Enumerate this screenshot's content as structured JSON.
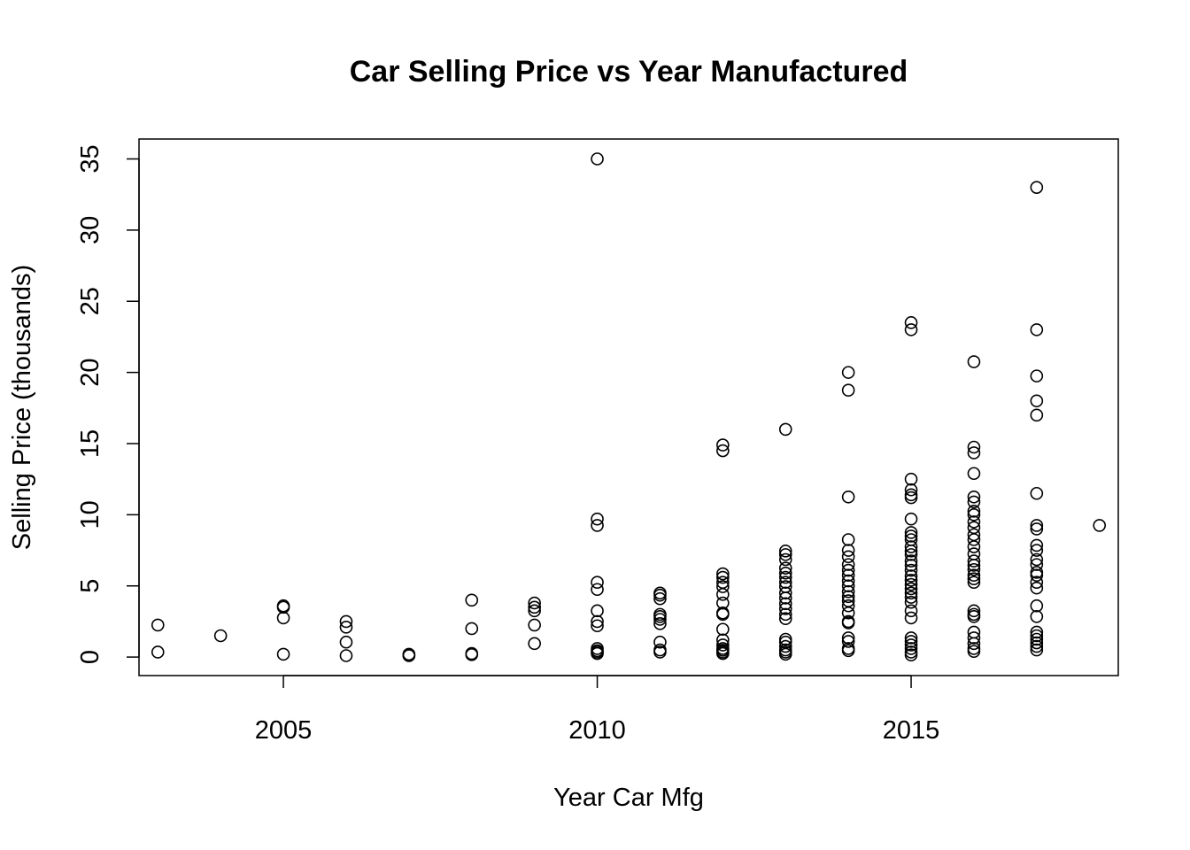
{
  "chart_data": {
    "type": "scatter",
    "title": "Car Selling Price vs Year Manufactured",
    "xlabel": "Year Car Mfg",
    "ylabel": "Selling Price (thousands)",
    "xlim": [
      2002.7,
      2018.3
    ],
    "ylim": [
      -1.3,
      36.4
    ],
    "xticks": [
      2005,
      2010,
      2015
    ],
    "yticks": [
      0,
      5,
      10,
      15,
      20,
      25,
      30,
      35
    ],
    "xtick_labels": [
      "2005",
      "2010",
      "2015"
    ],
    "ytick_labels": [
      "0",
      "5",
      "10",
      "15",
      "20",
      "25",
      "30",
      "35"
    ],
    "grid": false,
    "marker": "open-circle",
    "points": [
      [
        2003,
        2.25
      ],
      [
        2003,
        0.35
      ],
      [
        2004,
        1.5
      ],
      [
        2005,
        3.6
      ],
      [
        2005,
        3.5
      ],
      [
        2005,
        2.75
      ],
      [
        2005,
        0.2
      ],
      [
        2006,
        2.5
      ],
      [
        2006,
        2.1
      ],
      [
        2006,
        1.05
      ],
      [
        2006,
        0.1
      ],
      [
        2007,
        0.2
      ],
      [
        2007,
        0.12
      ],
      [
        2007,
        0.1
      ],
      [
        2008,
        4.0
      ],
      [
        2008,
        2.0
      ],
      [
        2008,
        0.25
      ],
      [
        2008,
        0.17
      ],
      [
        2009,
        3.8
      ],
      [
        2009,
        3.5
      ],
      [
        2009,
        3.25
      ],
      [
        2009,
        2.25
      ],
      [
        2009,
        0.95
      ],
      [
        2010,
        35.0
      ],
      [
        2010,
        9.7
      ],
      [
        2010,
        9.25
      ],
      [
        2010,
        5.25
      ],
      [
        2010,
        4.75
      ],
      [
        2010,
        3.25
      ],
      [
        2010,
        2.5
      ],
      [
        2010,
        2.2
      ],
      [
        2010,
        0.6
      ],
      [
        2010,
        0.45
      ],
      [
        2010,
        0.35
      ],
      [
        2010,
        0.25
      ],
      [
        2011,
        4.5
      ],
      [
        2011,
        4.35
      ],
      [
        2011,
        4.1
      ],
      [
        2011,
        3.0
      ],
      [
        2011,
        2.85
      ],
      [
        2011,
        2.65
      ],
      [
        2011,
        2.35
      ],
      [
        2011,
        1.05
      ],
      [
        2011,
        0.5
      ],
      [
        2011,
        0.35
      ],
      [
        2012,
        14.9
      ],
      [
        2012,
        14.5
      ],
      [
        2012,
        5.85
      ],
      [
        2012,
        5.6
      ],
      [
        2012,
        5.25
      ],
      [
        2012,
        4.95
      ],
      [
        2012,
        4.4
      ],
      [
        2012,
        3.8
      ],
      [
        2012,
        3.1
      ],
      [
        2012,
        3.0
      ],
      [
        2012,
        1.95
      ],
      [
        2012,
        1.2
      ],
      [
        2012,
        0.85
      ],
      [
        2012,
        0.6
      ],
      [
        2012,
        0.48
      ],
      [
        2012,
        0.35
      ],
      [
        2012,
        0.25
      ],
      [
        2013,
        16.0
      ],
      [
        2013,
        7.45
      ],
      [
        2013,
        7.2
      ],
      [
        2013,
        6.85
      ],
      [
        2013,
        6.25
      ],
      [
        2013,
        5.9
      ],
      [
        2013,
        5.6
      ],
      [
        2013,
        5.25
      ],
      [
        2013,
        4.95
      ],
      [
        2013,
        4.5
      ],
      [
        2013,
        4.15
      ],
      [
        2013,
        3.75
      ],
      [
        2013,
        3.4
      ],
      [
        2013,
        3.0
      ],
      [
        2013,
        2.7
      ],
      [
        2013,
        1.25
      ],
      [
        2013,
        1.05
      ],
      [
        2013,
        0.75
      ],
      [
        2013,
        0.5
      ],
      [
        2013,
        0.35
      ],
      [
        2013,
        0.2
      ],
      [
        2014,
        20.0
      ],
      [
        2014,
        18.75
      ],
      [
        2014,
        11.25
      ],
      [
        2014,
        8.25
      ],
      [
        2014,
        7.5
      ],
      [
        2014,
        7.05
      ],
      [
        2014,
        6.5
      ],
      [
        2014,
        6.1
      ],
      [
        2014,
        5.75
      ],
      [
        2014,
        5.35
      ],
      [
        2014,
        5.0
      ],
      [
        2014,
        4.6
      ],
      [
        2014,
        4.25
      ],
      [
        2014,
        3.95
      ],
      [
        2014,
        3.6
      ],
      [
        2014,
        3.1
      ],
      [
        2014,
        2.5
      ],
      [
        2014,
        2.4
      ],
      [
        2014,
        1.35
      ],
      [
        2014,
        1.1
      ],
      [
        2014,
        0.6
      ],
      [
        2014,
        0.45
      ],
      [
        2015,
        23.5
      ],
      [
        2015,
        23.0
      ],
      [
        2015,
        12.5
      ],
      [
        2015,
        11.75
      ],
      [
        2015,
        11.4
      ],
      [
        2015,
        11.2
      ],
      [
        2015,
        9.7
      ],
      [
        2015,
        8.75
      ],
      [
        2015,
        8.5
      ],
      [
        2015,
        8.25
      ],
      [
        2015,
        7.75
      ],
      [
        2015,
        7.45
      ],
      [
        2015,
        7.2
      ],
      [
        2015,
        6.75
      ],
      [
        2015,
        6.45
      ],
      [
        2015,
        6.1
      ],
      [
        2015,
        5.7
      ],
      [
        2015,
        5.4
      ],
      [
        2015,
        5.1
      ],
      [
        2015,
        4.8
      ],
      [
        2015,
        4.5
      ],
      [
        2015,
        4.2
      ],
      [
        2015,
        3.85
      ],
      [
        2015,
        3.25
      ],
      [
        2015,
        2.75
      ],
      [
        2015,
        1.35
      ],
      [
        2015,
        1.1
      ],
      [
        2015,
        0.85
      ],
      [
        2015,
        0.6
      ],
      [
        2015,
        0.35
      ],
      [
        2015,
        0.15
      ],
      [
        2016,
        20.75
      ],
      [
        2016,
        14.75
      ],
      [
        2016,
        14.35
      ],
      [
        2016,
        12.9
      ],
      [
        2016,
        11.25
      ],
      [
        2016,
        10.9
      ],
      [
        2016,
        10.25
      ],
      [
        2016,
        10.0
      ],
      [
        2016,
        9.5
      ],
      [
        2016,
        9.1
      ],
      [
        2016,
        8.6
      ],
      [
        2016,
        8.25
      ],
      [
        2016,
        7.75
      ],
      [
        2016,
        7.25
      ],
      [
        2016,
        6.75
      ],
      [
        2016,
        6.45
      ],
      [
        2016,
        6.15
      ],
      [
        2016,
        5.75
      ],
      [
        2016,
        5.5
      ],
      [
        2016,
        5.25
      ],
      [
        2016,
        3.25
      ],
      [
        2016,
        3.0
      ],
      [
        2016,
        2.85
      ],
      [
        2016,
        1.75
      ],
      [
        2016,
        1.35
      ],
      [
        2016,
        0.95
      ],
      [
        2016,
        0.6
      ],
      [
        2016,
        0.4
      ],
      [
        2017,
        33.0
      ],
      [
        2017,
        23.0
      ],
      [
        2017,
        19.75
      ],
      [
        2017,
        18.0
      ],
      [
        2017,
        17.0
      ],
      [
        2017,
        11.5
      ],
      [
        2017,
        9.25
      ],
      [
        2017,
        9.0
      ],
      [
        2017,
        7.85
      ],
      [
        2017,
        7.5
      ],
      [
        2017,
        6.85
      ],
      [
        2017,
        6.5
      ],
      [
        2017,
        5.95
      ],
      [
        2017,
        5.75
      ],
      [
        2017,
        5.25
      ],
      [
        2017,
        4.85
      ],
      [
        2017,
        3.6
      ],
      [
        2017,
        2.85
      ],
      [
        2017,
        1.75
      ],
      [
        2017,
        1.5
      ],
      [
        2017,
        1.25
      ],
      [
        2017,
        1.0
      ],
      [
        2017,
        0.75
      ],
      [
        2017,
        0.5
      ],
      [
        2018,
        9.25
      ]
    ]
  }
}
